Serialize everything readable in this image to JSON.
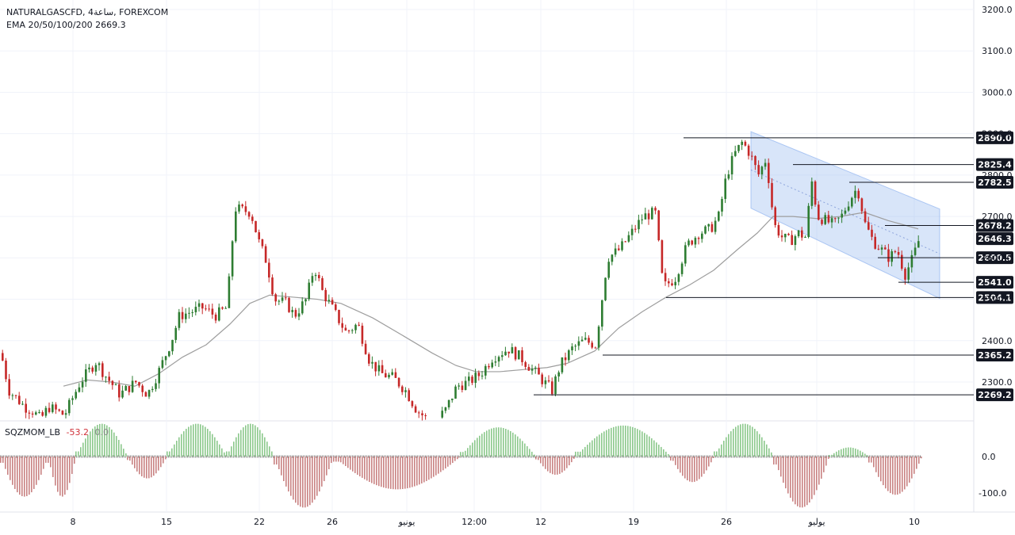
{
  "header": {
    "symbol": "NATURALGASCFD",
    "timeframe": "4ساعة",
    "exchange": "FOREXCOM",
    "ema_label": "EMA 20/50/100/200",
    "ema_value": "2669.3"
  },
  "indicator": {
    "name": "SQZMOM_LB",
    "value": "-53.2",
    "value2": "0.0"
  },
  "colors": {
    "up": "#26a69a",
    "up_candle": "#2e7d32",
    "down": "#c62828",
    "channel": "#90b4ef",
    "ema": "#9e9e9e",
    "level_line": "#131722",
    "tag_bg": "#131722",
    "tag_text": "#ffffff",
    "current_tag_bg": "#131722",
    "mom_up": "#8bc88b",
    "mom_down": "#c98282"
  },
  "chart_data": {
    "type": "candlestick",
    "price_axis": {
      "ticks": [
        "3200.0",
        "3100.0",
        "3000.0",
        "2900.0",
        "2800.0",
        "2700.0",
        "2600.0",
        "2500.0",
        "2400.0",
        "2300.0"
      ],
      "range": [
        2195,
        3210
      ]
    },
    "time_axis": {
      "labels": [
        "8",
        "15",
        "22",
        "26",
        "يونيو",
        "12:00",
        "12",
        "19",
        "26",
        "يوليو",
        "10"
      ]
    },
    "levels": [
      {
        "price": 2890.0,
        "label": "2890.0"
      },
      {
        "price": 2825.4,
        "label": "2825.4"
      },
      {
        "price": 2782.5,
        "label": "2782.5"
      },
      {
        "price": 2678.2,
        "label": "2678.2"
      },
      {
        "price": 2646.3,
        "label": "2646.3",
        "current": true
      },
      {
        "price": 2600.5,
        "label": "2600.5"
      },
      {
        "price": 2541.0,
        "label": "2541.0"
      },
      {
        "price": 2504.1,
        "label": "2504.1"
      },
      {
        "price": 2365.2,
        "label": "2365.2"
      },
      {
        "price": 2269.2,
        "label": "2269.2"
      }
    ],
    "momentum_axis": {
      "ticks": [
        "0.0",
        "-100.0"
      ]
    },
    "close_path": [
      [
        0,
        2370
      ],
      [
        10,
        2280
      ],
      [
        20,
        2260
      ],
      [
        30,
        2240
      ],
      [
        40,
        2230
      ],
      [
        50,
        2210
      ],
      [
        60,
        2240
      ],
      [
        80,
        2220
      ],
      [
        100,
        2300
      ],
      [
        120,
        2350
      ],
      [
        130,
        2320
      ],
      [
        150,
        2270
      ],
      [
        170,
        2300
      ],
      [
        185,
        2270
      ],
      [
        200,
        2330
      ],
      [
        215,
        2400
      ],
      [
        225,
        2460
      ],
      [
        240,
        2470
      ],
      [
        255,
        2480
      ],
      [
        270,
        2460
      ],
      [
        285,
        2480
      ],
      [
        295,
        2720
      ],
      [
        315,
        2710
      ],
      [
        325,
        2640
      ],
      [
        335,
        2590
      ],
      [
        345,
        2500
      ],
      [
        360,
        2490
      ],
      [
        370,
        2460
      ],
      [
        385,
        2500
      ],
      [
        395,
        2580
      ],
      [
        405,
        2520
      ],
      [
        420,
        2470
      ],
      [
        435,
        2420
      ],
      [
        450,
        2440
      ],
      [
        465,
        2350
      ],
      [
        480,
        2320
      ],
      [
        495,
        2310
      ],
      [
        510,
        2280
      ],
      [
        525,
        2230
      ],
      [
        545,
        2200
      ],
      [
        560,
        2230
      ],
      [
        575,
        2290
      ],
      [
        590,
        2300
      ],
      [
        605,
        2320
      ],
      [
        620,
        2360
      ],
      [
        640,
        2380
      ],
      [
        655,
        2360
      ],
      [
        670,
        2330
      ],
      [
        685,
        2300
      ],
      [
        695,
        2280
      ],
      [
        705,
        2340
      ],
      [
        720,
        2380
      ],
      [
        735,
        2400
      ],
      [
        750,
        2390
      ],
      [
        765,
        2600
      ],
      [
        780,
        2620
      ],
      [
        795,
        2660
      ],
      [
        810,
        2700
      ],
      [
        825,
        2710
      ],
      [
        835,
        2530
      ],
      [
        850,
        2550
      ],
      [
        865,
        2630
      ],
      [
        880,
        2660
      ],
      [
        895,
        2670
      ],
      [
        905,
        2700
      ],
      [
        915,
        2800
      ],
      [
        925,
        2850
      ],
      [
        935,
        2880
      ],
      [
        945,
        2850
      ],
      [
        955,
        2800
      ],
      [
        965,
        2840
      ],
      [
        975,
        2680
      ],
      [
        985,
        2650
      ],
      [
        995,
        2640
      ],
      [
        1005,
        2660
      ],
      [
        1015,
        2650
      ],
      [
        1022,
        2790
      ],
      [
        1030,
        2700
      ],
      [
        1040,
        2690
      ],
      [
        1050,
        2680
      ],
      [
        1060,
        2700
      ],
      [
        1070,
        2740
      ],
      [
        1080,
        2770
      ],
      [
        1090,
        2680
      ],
      [
        1100,
        2640
      ],
      [
        1110,
        2620
      ],
      [
        1120,
        2600
      ],
      [
        1130,
        2620
      ],
      [
        1140,
        2560
      ],
      [
        1150,
        2600
      ],
      [
        1158,
        2646
      ]
    ],
    "ema_path": [
      [
        80,
        2290
      ],
      [
        110,
        2305
      ],
      [
        140,
        2300
      ],
      [
        170,
        2290
      ],
      [
        200,
        2320
      ],
      [
        230,
        2360
      ],
      [
        260,
        2390
      ],
      [
        290,
        2440
      ],
      [
        315,
        2490
      ],
      [
        340,
        2510
      ],
      [
        370,
        2505
      ],
      [
        400,
        2500
      ],
      [
        430,
        2490
      ],
      [
        470,
        2455
      ],
      [
        510,
        2410
      ],
      [
        545,
        2370
      ],
      [
        575,
        2340
      ],
      [
        600,
        2325
      ],
      [
        630,
        2325
      ],
      [
        660,
        2330
      ],
      [
        690,
        2335
      ],
      [
        715,
        2345
      ],
      [
        750,
        2375
      ],
      [
        780,
        2430
      ],
      [
        810,
        2470
      ],
      [
        840,
        2505
      ],
      [
        870,
        2535
      ],
      [
        900,
        2570
      ],
      [
        930,
        2620
      ],
      [
        955,
        2660
      ],
      [
        975,
        2700
      ],
      [
        1000,
        2700
      ],
      [
        1030,
        2695
      ],
      [
        1060,
        2700
      ],
      [
        1090,
        2710
      ],
      [
        1120,
        2690
      ],
      [
        1158,
        2670
      ]
    ],
    "channel": {
      "start_x": 947,
      "end_x": 1185,
      "top": [
        2905,
        2718
      ],
      "bottom": [
        2720,
        2502
      ]
    },
    "momentum_zones": [
      [
        0,
        60,
        -110
      ],
      [
        60,
        95,
        -110
      ],
      [
        95,
        160,
        90
      ],
      [
        160,
        210,
        -60
      ],
      [
        210,
        285,
        90
      ],
      [
        285,
        345,
        90
      ],
      [
        345,
        420,
        -140
      ],
      [
        420,
        580,
        -90
      ],
      [
        580,
        675,
        80
      ],
      [
        675,
        725,
        -50
      ],
      [
        725,
        845,
        85
      ],
      [
        845,
        900,
        -70
      ],
      [
        900,
        975,
        90
      ],
      [
        975,
        1045,
        -140
      ],
      [
        1045,
        1095,
        25
      ],
      [
        1095,
        1162,
        -105
      ]
    ]
  }
}
